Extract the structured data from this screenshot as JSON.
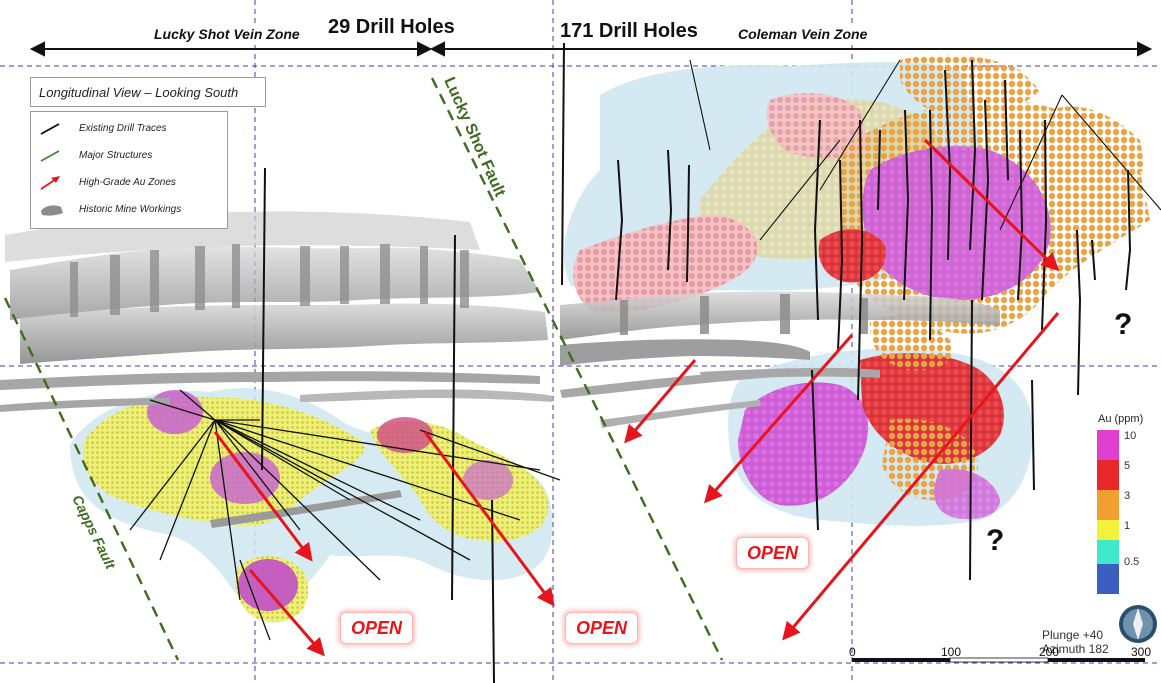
{
  "header": {
    "lucky_shot_zone": "Lucky Shot Vein Zone",
    "lucky_shot_holes": "29 Drill Holes",
    "coleman_holes": "171 Drill Holes",
    "coleman_zone": "Coleman Vein Zone"
  },
  "legend": {
    "title": "Longitudinal View – Looking South",
    "items": [
      {
        "label": "Existing Drill Traces",
        "color": "#111111",
        "symbol": "line"
      },
      {
        "label": "Major Structures",
        "color": "#3f8a2d",
        "symbol": "line"
      },
      {
        "label": "High-Grade Au Zones",
        "color": "#e8141b",
        "symbol": "arrow"
      },
      {
        "label": "Historic Mine Workings",
        "color": "#8c8c8c",
        "symbol": "blob"
      }
    ]
  },
  "faults": {
    "lucky_shot": "Lucky Shot Fault",
    "capps": "Capps Fault",
    "color": "#3f6b1f"
  },
  "open_labels": [
    "OPEN",
    "OPEN",
    "OPEN"
  ],
  "question_marks": [
    "?",
    "?"
  ],
  "au_scale": {
    "title": "Au (ppm)",
    "labels": [
      "10",
      "5",
      "3",
      "1",
      "0.5"
    ],
    "colors": [
      "#e040d0",
      "#e8282a",
      "#f0a030",
      "#f2f23a",
      "#3ee8c8",
      "#3a5fc0"
    ]
  },
  "orientation": {
    "plunge": "Plunge +40",
    "azimuth": "Azimuth 182"
  },
  "scale_bar": {
    "labels": [
      "0",
      "100",
      "200",
      "300"
    ]
  },
  "colors": {
    "grid": "#3a3fb0",
    "workings": "#9a9a9a",
    "envelope": "#bfe0ec",
    "arrow": "#e8141b"
  }
}
